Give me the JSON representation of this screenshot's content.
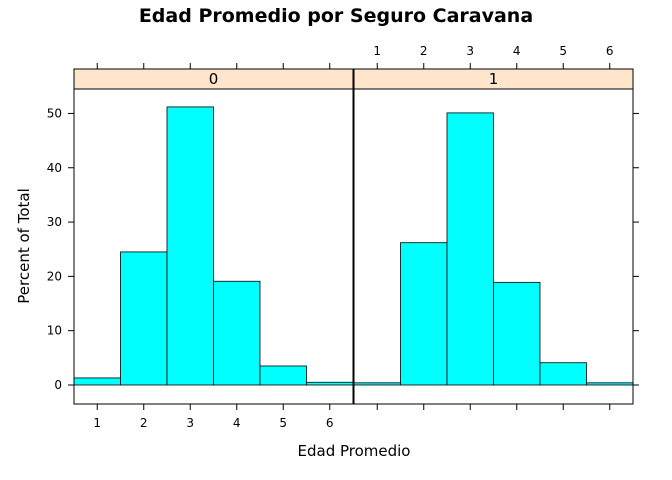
{
  "chart_data": {
    "type": "bar",
    "title": "Edad Promedio por Seguro Caravana",
    "xlabel": "Edad Promedio",
    "ylabel": "Percent of Total",
    "x_ticks": [
      "1",
      "2",
      "3",
      "4",
      "5",
      "6"
    ],
    "y_ticks": [
      "0",
      "10",
      "20",
      "30",
      "40",
      "50"
    ],
    "xlim": [
      0.5,
      6.5
    ],
    "ylim": [
      -3.5,
      54.5
    ],
    "bar_color": "#00ffff",
    "strip_color": "#ffe5cc",
    "panels": [
      {
        "strip_label": "0",
        "bins": [
          1,
          2,
          3,
          4,
          5,
          6
        ],
        "values": [
          1.3,
          24.5,
          51.2,
          19.1,
          3.5,
          0.5
        ]
      },
      {
        "strip_label": "1",
        "bins": [
          1,
          2,
          3,
          4,
          5,
          6
        ],
        "values": [
          0.4,
          26.2,
          50.1,
          18.9,
          4.1,
          0.4
        ]
      }
    ]
  }
}
